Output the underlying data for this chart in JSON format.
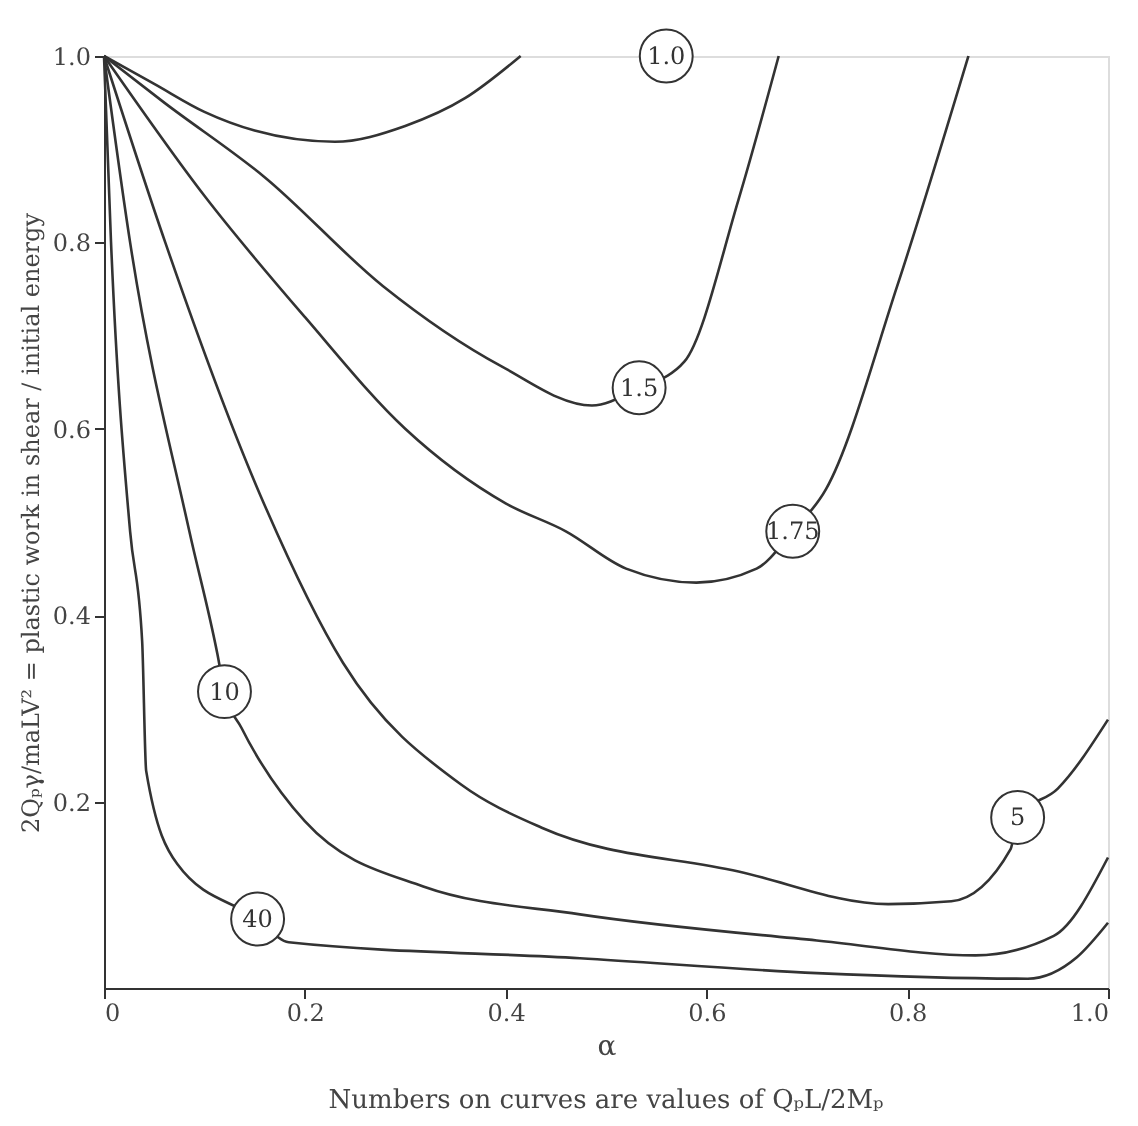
{
  "chart_data": {
    "type": "line",
    "xlabel": "α",
    "ylabel": "2Qₚγ/maLV² = plastic work in shear / initial energy",
    "xlim": [
      0,
      1
    ],
    "ylim": [
      0,
      1
    ],
    "xticks": [
      0,
      0.2,
      0.4,
      0.6,
      0.8,
      {
        "value": 1,
        "label": "1.0"
      }
    ],
    "yticks": [
      0.2,
      0.4,
      0.6,
      0.8,
      {
        "value": 1,
        "label": "1.0"
      }
    ],
    "grid": false,
    "marker": "none",
    "line_style": "solid",
    "series": [
      {
        "color": "#333333",
        "x": [
          0,
          0.05,
          0.1,
          0.15,
          0.23,
          0.3,
          0.36,
          0.415
        ],
        "values": [
          1,
          0.97,
          0.94,
          0.92,
          0.908,
          0.925,
          0.955,
          1
        ]
      },
      {
        "color": "#333333",
        "x": [
          0,
          0.06,
          0.16,
          0.278,
          0.396,
          0.486,
          0.533,
          0.578,
          0.632,
          0.672
        ],
        "values": [
          1,
          0.95,
          0.87,
          0.753,
          0.667,
          0.625,
          0.644,
          0.672,
          0.846,
          1
        ]
      },
      {
        "color": "#333333",
        "x": [
          0,
          0.1,
          0.2,
          0.3,
          0.4,
          0.46,
          0.52,
          0.59,
          0.65,
          0.686,
          0.719,
          0.79,
          0.861
        ],
        "values": [
          1,
          0.85,
          0.72,
          0.6,
          0.52,
          0.49,
          0.45,
          0.435,
          0.45,
          0.49,
          0.535,
          0.753,
          1
        ]
      },
      {
        "color": "#333333",
        "x": [
          0,
          0.061,
          0.156,
          0.238,
          0.356,
          0.436,
          0.632,
          0.781,
          0.844,
          0.903,
          0.91,
          0.95,
          1
        ],
        "values": [
          1,
          0.8,
          0.528,
          0.349,
          0.218,
          0.172,
          0.125,
          0.09,
          0.093,
          0.149,
          0.183,
          0.214,
          0.288
        ]
      },
      {
        "color": "#333333",
        "x": [
          0,
          0.026,
          0.085,
          0.113,
          0.12,
          0.137,
          0.2,
          0.318,
          0.474,
          0.71,
          0.868,
          0.946,
          1
        ],
        "values": [
          1,
          0.8,
          0.49,
          0.358,
          0.318,
          0.279,
          0.179,
          0.109,
          0.079,
          0.051,
          0.035,
          0.056,
          0.14
        ]
      },
      {
        "color": "#333333",
        "x": [
          0,
          0.007,
          0.026,
          0.038,
          0.042,
          0.073,
          0.153,
          0.184,
          0.474,
          0.71,
          0.92,
          0.969,
          1
        ],
        "values": [
          1,
          0.8,
          0.49,
          0.372,
          0.233,
          0.133,
          0.074,
          0.049,
          0.032,
          0.016,
          0.01,
          0.033,
          0.07
        ]
      }
    ],
    "annotations": [
      {
        "text": "1.0",
        "x": 0.56,
        "y": 1
      },
      {
        "text": "1.5",
        "x": 0.533,
        "y": 0.644
      },
      {
        "text": "1.75",
        "x": 0.686,
        "y": 0.49
      },
      {
        "text": "5",
        "x": 0.91,
        "y": 0.183
      },
      {
        "text": "10",
        "x": 0.12,
        "y": 0.318
      },
      {
        "text": "40",
        "x": 0.153,
        "y": 0.074
      },
      "Numbers on curves are values of QₚL/2Mₚ"
    ]
  }
}
